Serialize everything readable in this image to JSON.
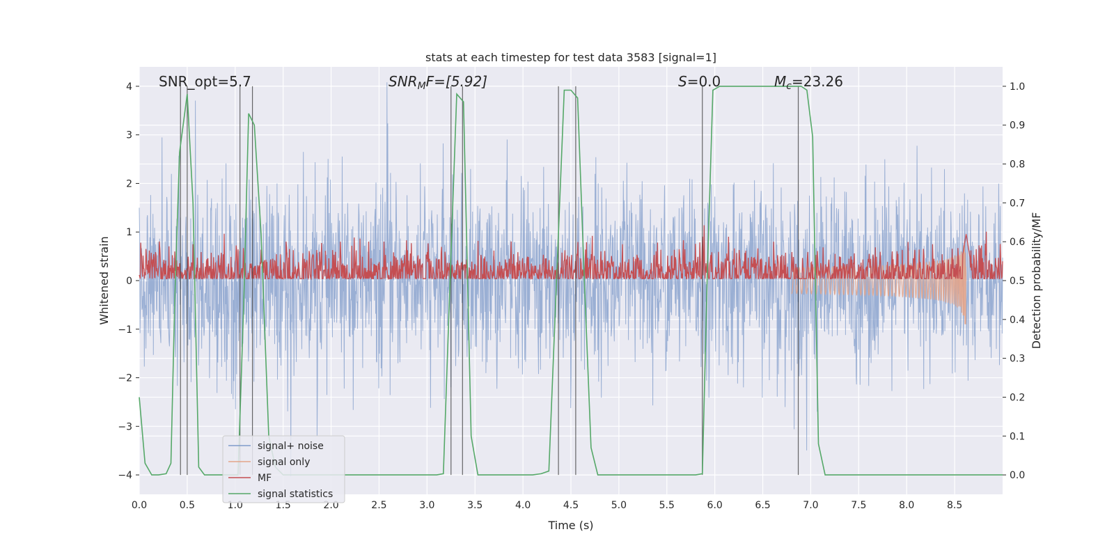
{
  "chart_data": {
    "type": "line",
    "title": "stats at each timestep for test data 3583 [signal=1]",
    "xlabel": "Time (s)",
    "ylabel": "Whitened strain",
    "ylabel_right": "Detection probability/MF",
    "xlim": [
      0,
      9.0
    ],
    "ylim": [
      -4.4,
      4.4
    ],
    "ylim_right": [
      -0.05,
      1.05
    ],
    "x_ticks": [
      "0.0",
      "0.5",
      "1.0",
      "1.5",
      "2.0",
      "2.5",
      "3.0",
      "3.5",
      "4.0",
      "4.5",
      "5.0",
      "5.5",
      "6.0",
      "6.5",
      "7.0",
      "7.5",
      "8.0",
      "8.5"
    ],
    "y_ticks": [
      "−4",
      "−3",
      "−2",
      "−1",
      "0",
      "1",
      "2",
      "3",
      "4"
    ],
    "y_ticks_right": [
      "0.0",
      "0.1",
      "0.2",
      "0.3",
      "0.4",
      "0.5",
      "0.6",
      "0.7",
      "0.8",
      "0.9",
      "1.0"
    ],
    "grid": true,
    "legend_position": "lower-left",
    "annotations": [
      "SNR_opt=5.7",
      "SNR",
      "M",
      "F=[5.92]",
      "S",
      "=0.0",
      "M",
      "c",
      "=23.26"
    ],
    "series": [
      {
        "name": "signal+ noise",
        "color": "#7f9bc9",
        "noise_envelope": [
          -4.1,
          4.1
        ],
        "typical_std": 0.8
      },
      {
        "name": "signal only",
        "color": "#e3a48a",
        "chirp_end_time": 8.62,
        "peak_amplitude": 1.35
      },
      {
        "name": "MF",
        "color": "#c44e52",
        "baseline_mean": 0.52,
        "spread": 0.04,
        "peak_time": 8.62,
        "peak_value": 0.62
      },
      {
        "name": "signal statistics",
        "color": "#55a868",
        "x": [
          0.0,
          0.06,
          0.13,
          0.2,
          0.28,
          0.33,
          0.37,
          0.42,
          0.5,
          0.56,
          0.62,
          0.68,
          0.75,
          0.82,
          0.88,
          0.95,
          1.03,
          1.09,
          1.14,
          1.2,
          1.27,
          1.35,
          1.42,
          1.5,
          1.6,
          1.7,
          1.8,
          1.9,
          2.0,
          2.2,
          2.4,
          2.6,
          2.8,
          3.0,
          3.1,
          3.17,
          3.24,
          3.31,
          3.38,
          3.46,
          3.53,
          3.62,
          3.7,
          3.8,
          3.9,
          4.0,
          4.1,
          4.19,
          4.27,
          4.35,
          4.43,
          4.5,
          4.57,
          4.64,
          4.71,
          4.78,
          4.88,
          5.0,
          5.2,
          5.4,
          5.6,
          5.8,
          5.87,
          5.92,
          5.98,
          6.05,
          6.2,
          6.4,
          6.6,
          6.8,
          6.9,
          6.96,
          7.02,
          7.08,
          7.15,
          7.3,
          7.5,
          7.7,
          7.9,
          8.1,
          8.3,
          8.5,
          8.7,
          8.9,
          9.0
        ],
        "y": [
          0.2,
          0.03,
          0.0,
          0.0,
          0.003,
          0.03,
          0.45,
          0.83,
          0.98,
          0.7,
          0.02,
          0.0,
          0.0,
          0.0,
          0.0,
          0.0,
          0.0,
          0.45,
          0.93,
          0.9,
          0.62,
          0.1,
          0.02,
          0.0,
          0.0,
          0.0,
          0.0,
          0.0,
          0.0,
          0.0,
          0.0,
          0.0,
          0.0,
          0.0,
          0.0,
          0.003,
          0.5,
          0.98,
          0.96,
          0.1,
          0.0,
          0.0,
          0.0,
          0.0,
          0.0,
          0.0,
          0.0,
          0.003,
          0.01,
          0.5,
          0.99,
          0.99,
          0.97,
          0.5,
          0.07,
          0.0,
          0.0,
          0.0,
          0.0,
          0.0,
          0.0,
          0.0,
          0.003,
          0.5,
          0.99,
          1.0,
          1.0,
          1.0,
          1.0,
          1.0,
          1.0,
          0.99,
          0.87,
          0.08,
          0.0,
          0.0,
          0.0,
          0.0,
          0.0,
          0.0,
          0.0,
          0.0,
          0.0,
          0.0,
          0.0
        ]
      }
    ],
    "vertical_markers": [
      0.43,
      0.5,
      1.05,
      1.18,
      3.25,
      3.37,
      4.37,
      4.55,
      5.87,
      6.87
    ]
  }
}
